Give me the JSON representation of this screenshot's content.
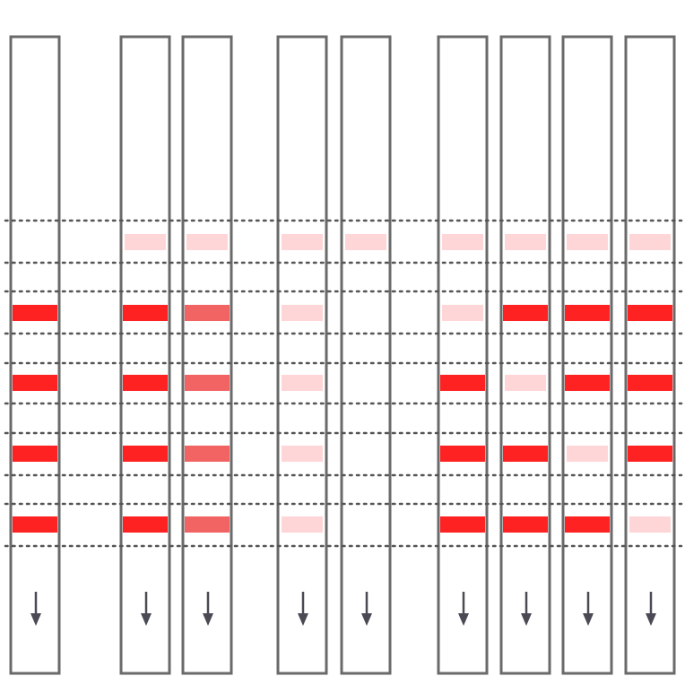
{
  "colors": {
    "strip_border": "#6a6a6a",
    "guide_line": "#555555",
    "arrow": "#4a4a55",
    "band_strong": "#ff2222",
    "band_medium": "#f26464",
    "band_faint": "#ffd6d8"
  },
  "icon": "arrow-down-icon",
  "strips": [
    {
      "bands": [
        "none",
        "strong",
        "strong",
        "strong",
        "strong"
      ]
    },
    {
      "bands": [
        "faint",
        "strong",
        "strong",
        "strong",
        "strong"
      ]
    },
    {
      "bands": [
        "faint",
        "medium",
        "medium",
        "medium",
        "medium"
      ]
    },
    {
      "bands": [
        "faint",
        "faint",
        "faint",
        "faint",
        "faint"
      ]
    },
    {
      "bands": [
        "faint",
        "none",
        "none",
        "none",
        "none"
      ]
    },
    {
      "bands": [
        "faint",
        "faint",
        "strong",
        "strong",
        "strong"
      ]
    },
    {
      "bands": [
        "faint",
        "strong",
        "faint",
        "strong",
        "strong"
      ]
    },
    {
      "bands": [
        "faint",
        "strong",
        "strong",
        "faint",
        "strong"
      ]
    },
    {
      "bands": [
        "faint",
        "strong",
        "strong",
        "strong",
        "faint"
      ]
    }
  ]
}
